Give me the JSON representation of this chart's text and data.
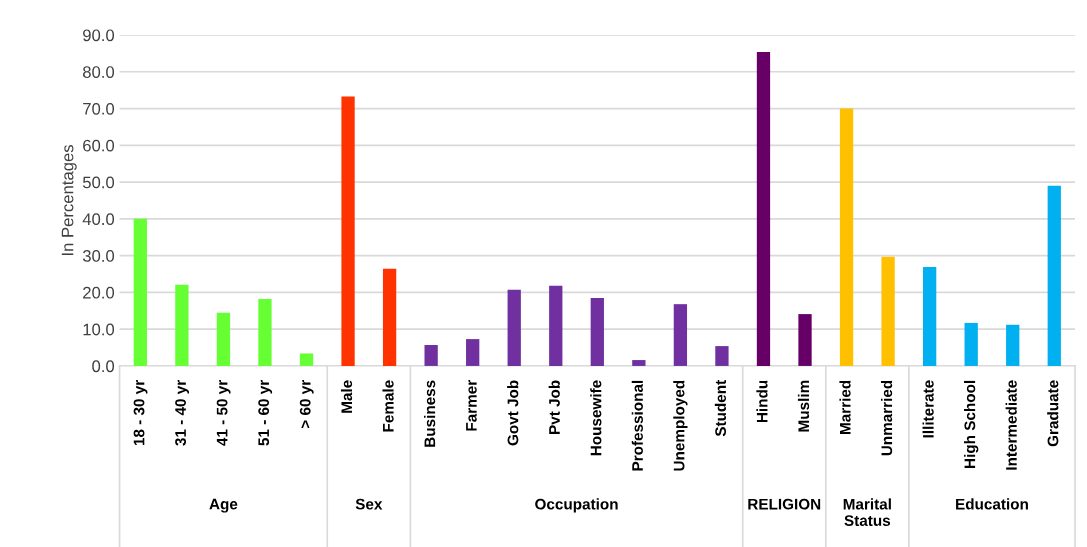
{
  "chart_data": {
    "type": "bar",
    "ylabel": "In Percentages",
    "categories": [
      "18 - 30 yr",
      "31 - 40 yr",
      "41 - 50 yr",
      "51 - 60 yr",
      "> 60 yr",
      "Male",
      "Female",
      "Business",
      "Farmer",
      "Govt Job",
      "Pvt Job",
      "Housewife",
      "Professional",
      "Unemployed",
      "Student",
      "Hindu",
      "Muslim",
      "Married",
      "Unmarried",
      "Illiterate",
      "High School",
      "Intermediate",
      "Graduate"
    ],
    "series": [
      {
        "color": "#66ff33",
        "values": [
          40.0,
          22.1,
          14.5,
          18.2,
          3.4,
          null,
          null,
          null,
          null,
          null,
          null,
          null,
          null,
          null,
          null,
          null,
          null,
          null,
          null,
          null,
          null,
          null,
          null
        ]
      },
      {
        "color": "#ff3300",
        "values": [
          null,
          null,
          null,
          null,
          null,
          73.3,
          26.4,
          null,
          null,
          null,
          null,
          null,
          null,
          null,
          null,
          null,
          null,
          null,
          null,
          null,
          null,
          null,
          null
        ]
      },
      {
        "color": "#7030a0",
        "values": [
          null,
          null,
          null,
          null,
          null,
          null,
          null,
          5.7,
          7.3,
          20.7,
          21.8,
          18.5,
          1.6,
          16.8,
          5.4,
          null,
          null,
          null,
          null,
          null,
          null,
          null,
          null
        ]
      },
      {
        "color": "#660066",
        "values": [
          null,
          null,
          null,
          null,
          null,
          null,
          null,
          null,
          null,
          null,
          null,
          null,
          null,
          null,
          null,
          85.4,
          14.1,
          null,
          null,
          null,
          null,
          null,
          null
        ]
      },
      {
        "color": "#ffc000",
        "values": [
          null,
          null,
          null,
          null,
          null,
          null,
          null,
          null,
          null,
          null,
          null,
          null,
          null,
          null,
          null,
          null,
          null,
          70.0,
          29.7,
          null,
          null,
          null,
          null
        ]
      },
      {
        "color": "#00b0f0",
        "values": [
          null,
          null,
          null,
          null,
          null,
          null,
          null,
          null,
          null,
          null,
          null,
          null,
          null,
          null,
          null,
          null,
          null,
          null,
          null,
          26.9,
          11.7,
          11.2,
          49.0
        ]
      }
    ],
    "ylim": [
      0,
      90
    ],
    "yticks": [
      {
        "value": 0,
        "label": "0.0"
      },
      {
        "value": 10,
        "label": "10.0"
      },
      {
        "value": 20,
        "label": "20.0"
      },
      {
        "value": 30,
        "label": "30.0"
      },
      {
        "value": 40,
        "label": "40.0"
      },
      {
        "value": 50,
        "label": "50.0"
      },
      {
        "value": 60,
        "label": "60.0"
      },
      {
        "value": 70,
        "label": "70.0"
      },
      {
        "value": 80,
        "label": "80.0"
      },
      {
        "value": 90,
        "label": "90.0"
      }
    ],
    "annotations": [
      "Age",
      "Sex",
      "Occupation",
      "RELIGION",
      "Marital Status",
      "Education"
    ],
    "grid": "y",
    "legend": false
  }
}
